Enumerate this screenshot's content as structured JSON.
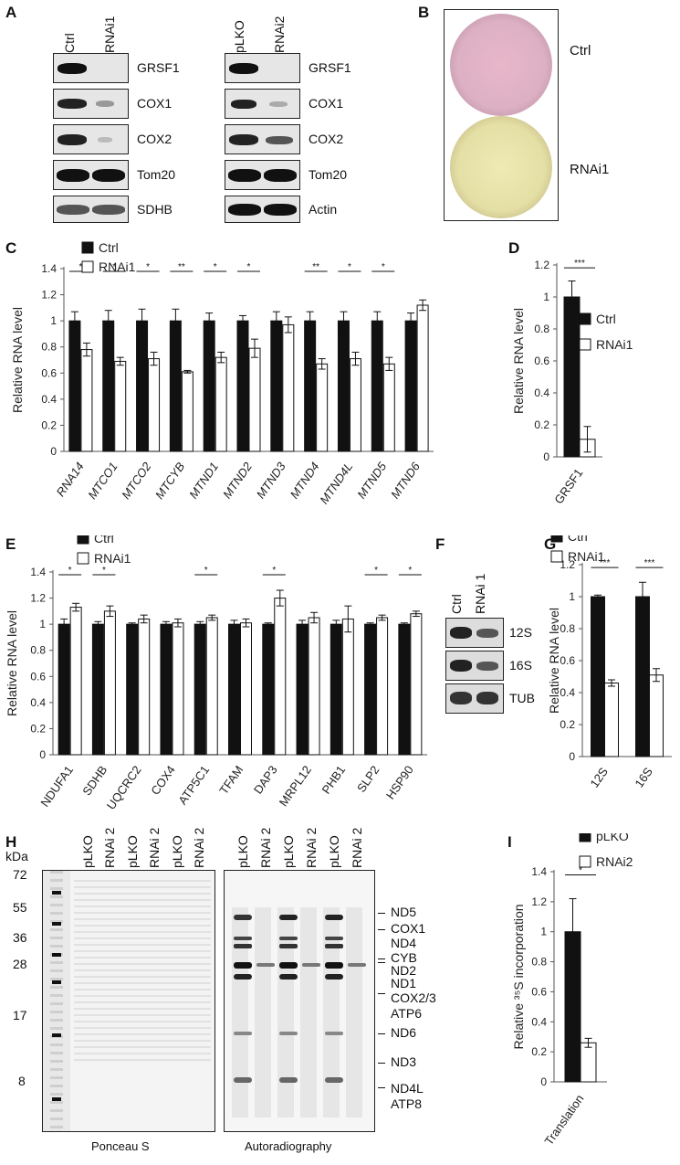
{
  "panels": {
    "A": "A",
    "B": "B",
    "C": "C",
    "D": "D",
    "E": "E",
    "F": "F",
    "G": "G",
    "H": "H",
    "I": "I"
  },
  "panel_a": {
    "left": {
      "lanes": [
        "Ctrl",
        "RNAi1"
      ],
      "rows": [
        "GRSF1",
        "COX1",
        "COX2",
        "Tom20",
        "SDHB"
      ]
    },
    "right": {
      "lanes": [
        "pLKO",
        "RNAi2"
      ],
      "rows": [
        "GRSF1",
        "COX1",
        "COX2",
        "Tom20",
        "Actin"
      ]
    }
  },
  "panel_b": {
    "labels": [
      "Ctrl",
      "RNAi1"
    ]
  },
  "panel_f": {
    "lanes": [
      "Ctrl",
      "RNAi 1"
    ],
    "rows": [
      "12S",
      "16S",
      "TUB"
    ]
  },
  "panel_h": {
    "kda_label": "kDa",
    "markers": [
      "72",
      "55",
      "36",
      "28",
      "17",
      "8"
    ],
    "lanes": [
      "pLKO",
      "RNAi 2",
      "pLKO",
      "RNAi 2",
      "pLKO",
      "RNAi 2"
    ],
    "left_caption": "Ponceau S",
    "right_caption": "Autoradiography",
    "bands": [
      "ND5",
      "COX1",
      "ND4",
      "CYB",
      "ND2",
      "ND1",
      "COX2/3",
      "ATP6",
      "ND6",
      "ND3",
      "ND4L",
      "ATP8"
    ]
  },
  "chart_data": [
    {
      "id": "C",
      "type": "bar",
      "ylabel": "Relative RNA level",
      "ylim": [
        0,
        1.4
      ],
      "yticks": [
        "0",
        "0.2",
        "0.4",
        "0.6",
        "0.8",
        "1",
        "1.2",
        "1.4"
      ],
      "categories": [
        "RNA14",
        "MTCO1",
        "MTCO2",
        "MTCYB",
        "MTND1",
        "MTND2",
        "MTND3",
        "MTND4",
        "MTND4L",
        "MTND5",
        "MTND6"
      ],
      "italic_categories": true,
      "series": [
        {
          "name": "Ctrl",
          "color": "#111111",
          "values": [
            1.0,
            1.0,
            1.0,
            1.0,
            1.0,
            1.0,
            1.0,
            1.0,
            1.0,
            1.0,
            1.0
          ],
          "errors": [
            0.07,
            0.08,
            0.09,
            0.09,
            0.06,
            0.04,
            0.07,
            0.07,
            0.07,
            0.07,
            0.06
          ]
        },
        {
          "name": "RNAi1",
          "color": "#ffffff",
          "values": [
            0.78,
            0.69,
            0.71,
            0.61,
            0.72,
            0.79,
            0.97,
            0.67,
            0.71,
            0.67,
            1.12
          ],
          "errors": [
            0.05,
            0.03,
            0.05,
            0.01,
            0.04,
            0.07,
            0.06,
            0.04,
            0.05,
            0.05,
            0.04
          ]
        }
      ],
      "significance": [
        "*",
        "*",
        "*",
        "**",
        "*",
        "*",
        "",
        "**",
        "*",
        "*",
        ""
      ],
      "legend": "top-left"
    },
    {
      "id": "D",
      "type": "bar",
      "ylabel": "Relative RNA level",
      "ylim": [
        0,
        1.2
      ],
      "yticks": [
        "0",
        "0.2",
        "0.4",
        "0.6",
        "0.8",
        "1",
        "1.2"
      ],
      "categories": [
        "GRSF1"
      ],
      "series": [
        {
          "name": "Ctrl",
          "color": "#111111",
          "values": [
            1.0
          ],
          "errors": [
            0.1
          ]
        },
        {
          "name": "RNAi1",
          "color": "#ffffff",
          "values": [
            0.11
          ],
          "errors": [
            0.08
          ]
        }
      ],
      "significance": [
        "***"
      ],
      "legend": "right"
    },
    {
      "id": "E",
      "type": "bar",
      "ylabel": "Relative RNA level",
      "ylim": [
        0,
        1.4
      ],
      "yticks": [
        "0",
        "0.2",
        "0.4",
        "0.6",
        "0.8",
        "1",
        "1.2",
        "1.4"
      ],
      "categories": [
        "NDUFA1",
        "SDHB",
        "UQCRC2",
        "COX4",
        "ATP5C1",
        "TFAM",
        "DAP3",
        "MRPL12",
        "PHB1",
        "SLP2",
        "HSP90"
      ],
      "series": [
        {
          "name": "Ctrl",
          "color": "#111111",
          "values": [
            1.0,
            1.0,
            1.0,
            1.0,
            1.0,
            1.0,
            1.0,
            1.0,
            1.0,
            1.0,
            1.0
          ],
          "errors": [
            0.04,
            0.02,
            0.01,
            0.02,
            0.02,
            0.03,
            0.01,
            0.03,
            0.03,
            0.01,
            0.01
          ]
        },
        {
          "name": "RNAi1",
          "color": "#ffffff",
          "values": [
            1.13,
            1.1,
            1.04,
            1.01,
            1.05,
            1.01,
            1.2,
            1.05,
            1.04,
            1.05,
            1.08
          ],
          "errors": [
            0.03,
            0.04,
            0.03,
            0.03,
            0.02,
            0.03,
            0.06,
            0.04,
            0.1,
            0.02,
            0.02
          ]
        }
      ],
      "significance": [
        "*",
        "*",
        "",
        "",
        "*",
        "",
        "*",
        "",
        "",
        "*",
        "*"
      ],
      "legend": "top-left"
    },
    {
      "id": "G",
      "type": "bar",
      "ylabel": "Relative RNA level",
      "ylim": [
        0,
        1.2
      ],
      "yticks": [
        "0",
        "0.2",
        "0.4",
        "0.6",
        "0.8",
        "1",
        "1.2"
      ],
      "categories": [
        "12S",
        "16S"
      ],
      "series": [
        {
          "name": "Ctrl",
          "color": "#111111",
          "values": [
            1.0,
            1.0
          ],
          "errors": [
            0.01,
            0.09
          ]
        },
        {
          "name": "RNAi1",
          "color": "#ffffff",
          "values": [
            0.46,
            0.51
          ],
          "errors": [
            0.02,
            0.04
          ]
        }
      ],
      "significance": [
        "***",
        "***"
      ],
      "legend": "top"
    },
    {
      "id": "I",
      "type": "bar",
      "ylabel": "Relative ³⁵S incorporation",
      "ylim": [
        0,
        1.4
      ],
      "yticks": [
        "0",
        "0.2",
        "0.4",
        "0.6",
        "0.8",
        "1",
        "1.2",
        "1.4"
      ],
      "categories": [
        "Translation"
      ],
      "series": [
        {
          "name": "pLKO",
          "color": "#111111",
          "values": [
            1.0
          ],
          "errors": [
            0.22
          ]
        },
        {
          "name": "RNAi2",
          "color": "#ffffff",
          "values": [
            0.26
          ],
          "errors": [
            0.03
          ]
        }
      ],
      "significance": [
        "*"
      ],
      "legend": "right"
    }
  ]
}
